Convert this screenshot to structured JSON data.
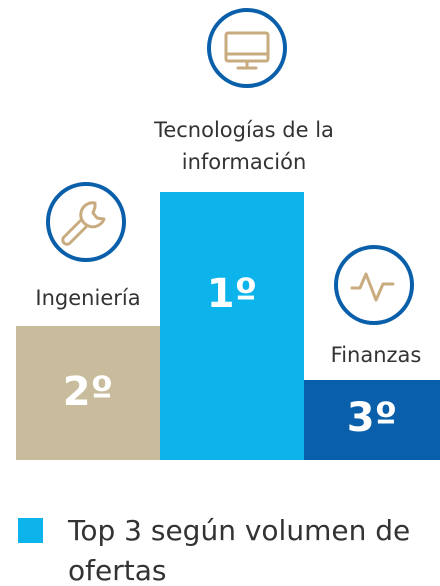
{
  "podium": [
    {
      "label_lines": [
        "Ingeniería"
      ],
      "rank": "2º"
    },
    {
      "label_lines": [
        "Tecnologías de la",
        "información"
      ],
      "rank": "1º"
    },
    {
      "label_lines": [
        "Finanzas"
      ],
      "rank": "3º"
    }
  ],
  "legend": {
    "lines": [
      "Top 3 según volumen de",
      "ofertas"
    ]
  }
}
